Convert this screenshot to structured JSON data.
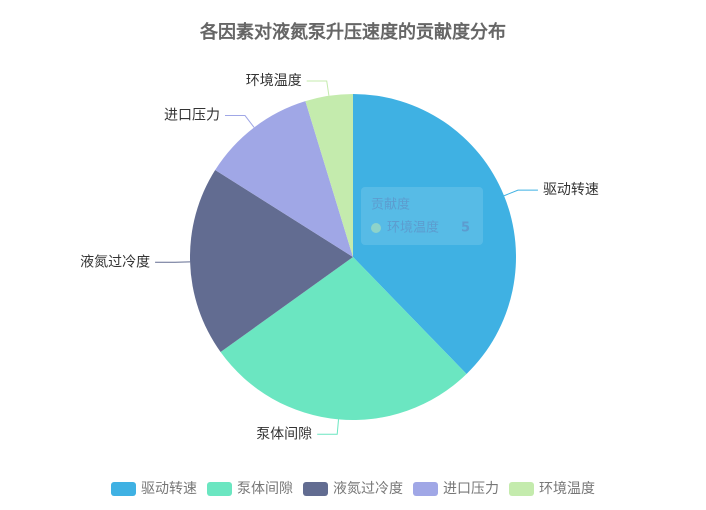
{
  "chart_data": {
    "type": "pie",
    "title": "各因素对液氮泵升压速度的贡献度分布",
    "series_name": "贡献度",
    "categories": [
      "驱动转速",
      "泵体间隙",
      "液氮过冷度",
      "进口压力",
      "环境温度"
    ],
    "values": [
      40,
      29,
      20,
      12,
      5
    ],
    "colors": [
      "#3fb1e3",
      "#6be6c1",
      "#626c91",
      "#a0a7e6",
      "#c4ebad"
    ],
    "legend": "bottom"
  }
}
